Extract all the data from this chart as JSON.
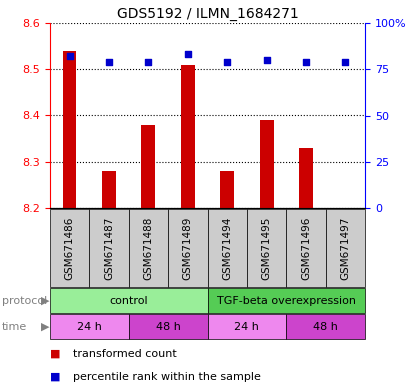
{
  "title": "GDS5192 / ILMN_1684271",
  "samples": [
    "GSM671486",
    "GSM671487",
    "GSM671488",
    "GSM671489",
    "GSM671494",
    "GSM671495",
    "GSM671496",
    "GSM671497"
  ],
  "bar_values": [
    8.54,
    8.28,
    8.38,
    8.51,
    8.28,
    8.39,
    8.33,
    8.2
  ],
  "percentile_values": [
    82,
    79,
    79,
    83,
    79,
    80,
    79,
    79
  ],
  "ylim_left": [
    8.2,
    8.6
  ],
  "ylim_right": [
    0,
    100
  ],
  "yticks_left": [
    8.2,
    8.3,
    8.4,
    8.5,
    8.6
  ],
  "yticks_right": [
    0,
    25,
    50,
    75,
    100
  ],
  "ytick_right_labels": [
    "0",
    "25",
    "50",
    "75",
    "100%"
  ],
  "bar_color": "#cc0000",
  "scatter_color": "#0000cc",
  "bar_bottom": 8.2,
  "protocol_defs": [
    {
      "label": "control",
      "start": 0,
      "end": 4,
      "color": "#99ee99"
    },
    {
      "label": "TGF-beta overexpression",
      "start": 4,
      "end": 8,
      "color": "#55cc55"
    }
  ],
  "time_defs": [
    {
      "label": "24 h",
      "start": 0,
      "end": 2,
      "color": "#ee88ee"
    },
    {
      "label": "48 h",
      "start": 2,
      "end": 4,
      "color": "#cc44cc"
    },
    {
      "label": "24 h",
      "start": 4,
      "end": 6,
      "color": "#ee88ee"
    },
    {
      "label": "48 h",
      "start": 6,
      "end": 8,
      "color": "#cc44cc"
    }
  ],
  "legend_items": [
    {
      "label": "transformed count",
      "color": "#cc0000"
    },
    {
      "label": "percentile rank within the sample",
      "color": "#0000cc"
    }
  ],
  "xlabel_rotation": -90,
  "grid_linestyle": "dotted",
  "label_color_protocol": "gray",
  "label_color_time": "gray",
  "xticklabel_bg": "#cccccc"
}
